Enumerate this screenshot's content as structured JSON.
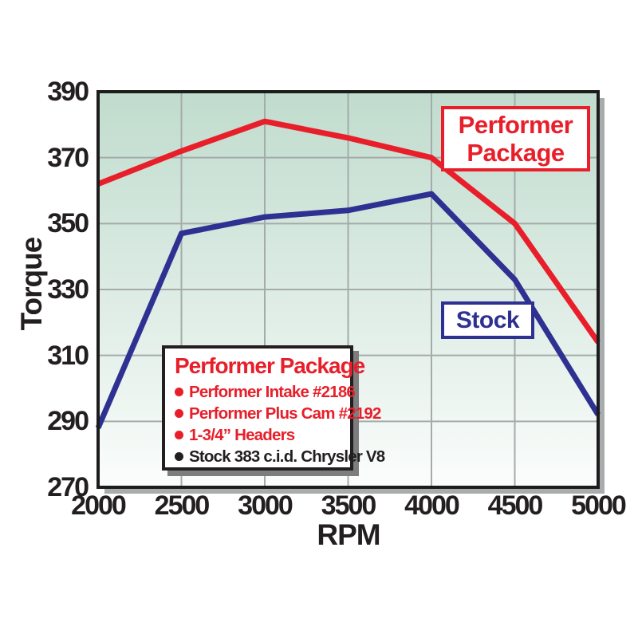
{
  "chart_data": {
    "type": "line",
    "title": "",
    "xlabel": "RPM",
    "ylabel": "Torque",
    "x": [
      2000,
      2500,
      3000,
      3500,
      4000,
      4500,
      5000
    ],
    "yticks": [
      390,
      370,
      350,
      330,
      310,
      290,
      270
    ],
    "xlim": [
      2000,
      5000
    ],
    "ylim": [
      270,
      390
    ],
    "grid": true,
    "legend_position": "annotated-boxes-on-plot",
    "series": [
      {
        "name": "Performer Package",
        "color": "#e81f2a",
        "values": [
          362,
          372,
          381,
          376,
          370,
          350,
          314
        ]
      },
      {
        "name": "Stock",
        "color": "#2e3192",
        "values": [
          288,
          347,
          352,
          354,
          359,
          333,
          292
        ]
      }
    ]
  },
  "annotations": {
    "performer_label": {
      "line1": "Performer",
      "line2": "Package"
    },
    "stock_label": {
      "text": "Stock"
    }
  },
  "spec_box": {
    "title": "Performer Package",
    "items": [
      {
        "text": "Performer Intake #2186",
        "color": "red"
      },
      {
        "text": "Performer Plus Cam #2192",
        "color": "red"
      },
      {
        "text": "1-3/4” Headers",
        "color": "red"
      },
      {
        "text": "Stock 383 c.i.d. Chrysler V8",
        "color": "black"
      }
    ]
  },
  "colors": {
    "red": "#e81f2a",
    "blue": "#2e3192",
    "black": "#231f20",
    "grid": "#a5abab",
    "plot_border": "#1c1c1c",
    "plot_shadow": "#a8acad",
    "legend_shadow": "#7d7d7d",
    "bg_gradient_top": "#c0dccd",
    "bg_gradient_mid": "#dfede6",
    "bg_gradient_bottom": "#fbfdfc",
    "page_bg": "#ffffff",
    "box_bg": "#ffffff"
  }
}
